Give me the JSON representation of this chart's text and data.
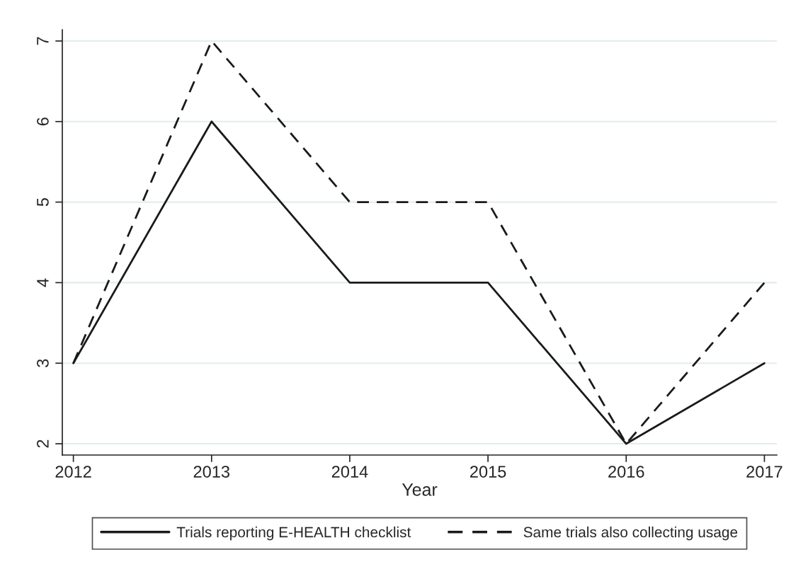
{
  "chart_data": {
    "type": "line",
    "xlabel": "Year",
    "x": [
      2012,
      2013,
      2014,
      2015,
      2016,
      2017
    ],
    "series": [
      {
        "name": "Trials reporting E-HEALTH checklist",
        "color": "#1a1a1a",
        "line_style": "solid",
        "values": [
          3,
          6,
          4,
          4,
          2,
          3
        ]
      },
      {
        "name": "Same trials also collecting usage",
        "color": "#1a1a1a",
        "line_style": "dashed",
        "values": [
          3,
          7,
          5,
          5,
          2,
          4
        ]
      }
    ],
    "xlim": [
      2011.92,
      2017.09
    ],
    "xticks": [
      2012,
      2013,
      2014,
      2015,
      2016,
      2017
    ],
    "ylim": [
      1.86,
      7.14
    ],
    "yticks": [
      2,
      3,
      4,
      5,
      6,
      7
    ],
    "grid": "y",
    "legend": "bottom",
    "marker": "none"
  }
}
